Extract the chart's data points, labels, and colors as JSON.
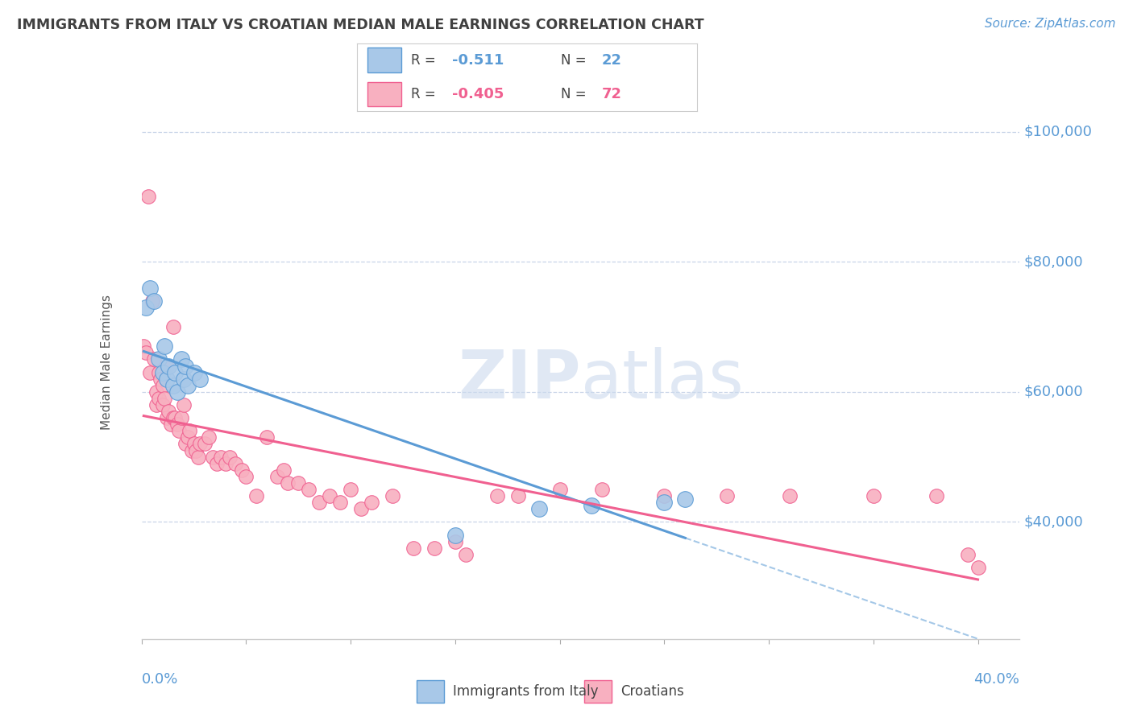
{
  "title": "IMMIGRANTS FROM ITALY VS CROATIAN MEDIAN MALE EARNINGS CORRELATION CHART",
  "source": "Source: ZipAtlas.com",
  "ylabel": "Median Male Earnings",
  "xlim": [
    0.0,
    0.42
  ],
  "ylim": [
    22000,
    107000
  ],
  "italy_color": "#a8c8e8",
  "croatia_color": "#f8b0c0",
  "italy_line_color": "#5b9bd5",
  "croatia_line_color": "#f06090",
  "background": "#ffffff",
  "grid_color": "#c8d4e8",
  "title_color": "#404040",
  "axis_label_color": "#5b9bd5",
  "italy_x": [
    0.002,
    0.004,
    0.006,
    0.008,
    0.01,
    0.011,
    0.012,
    0.013,
    0.015,
    0.016,
    0.017,
    0.019,
    0.02,
    0.021,
    0.022,
    0.025,
    0.028,
    0.19,
    0.215,
    0.25,
    0.26,
    0.15
  ],
  "italy_y": [
    73000,
    76000,
    74000,
    65000,
    63000,
    67000,
    62000,
    64000,
    61000,
    63000,
    60000,
    65000,
    62000,
    64000,
    61000,
    63000,
    62000,
    42000,
    42500,
    43000,
    43500,
    38000
  ],
  "croatia_x": [
    0.001,
    0.002,
    0.003,
    0.004,
    0.005,
    0.006,
    0.007,
    0.007,
    0.008,
    0.008,
    0.009,
    0.01,
    0.01,
    0.011,
    0.012,
    0.012,
    0.013,
    0.014,
    0.015,
    0.015,
    0.016,
    0.017,
    0.018,
    0.019,
    0.02,
    0.021,
    0.022,
    0.023,
    0.024,
    0.025,
    0.026,
    0.027,
    0.028,
    0.03,
    0.032,
    0.034,
    0.036,
    0.038,
    0.04,
    0.042,
    0.045,
    0.048,
    0.05,
    0.055,
    0.06,
    0.065,
    0.068,
    0.07,
    0.075,
    0.08,
    0.085,
    0.09,
    0.095,
    0.1,
    0.105,
    0.11,
    0.12,
    0.13,
    0.14,
    0.15,
    0.155,
    0.17,
    0.18,
    0.2,
    0.22,
    0.25,
    0.28,
    0.31,
    0.35,
    0.38,
    0.395,
    0.4
  ],
  "croatia_y": [
    67000,
    66000,
    90000,
    63000,
    74000,
    65000,
    60000,
    58000,
    63000,
    59000,
    62000,
    61000,
    58000,
    59000,
    64000,
    56000,
    57000,
    55000,
    56000,
    70000,
    56000,
    55000,
    54000,
    56000,
    58000,
    52000,
    53000,
    54000,
    51000,
    52000,
    51000,
    50000,
    52000,
    52000,
    53000,
    50000,
    49000,
    50000,
    49000,
    50000,
    49000,
    48000,
    47000,
    44000,
    53000,
    47000,
    48000,
    46000,
    46000,
    45000,
    43000,
    44000,
    43000,
    45000,
    42000,
    43000,
    44000,
    36000,
    36000,
    37000,
    35000,
    44000,
    44000,
    45000,
    45000,
    44000,
    44000,
    44000,
    44000,
    44000,
    35000,
    33000
  ]
}
